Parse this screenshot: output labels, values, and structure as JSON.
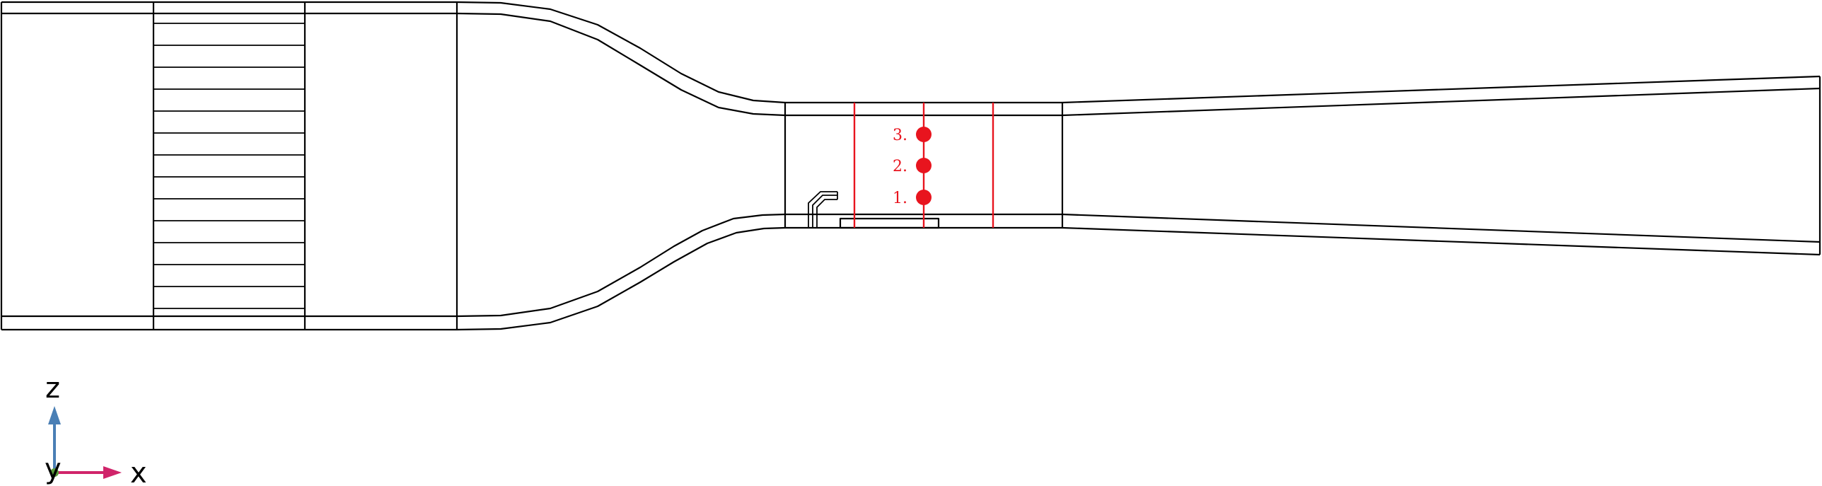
{
  "colors": {
    "outline": "#000000",
    "probe": "#e8141e",
    "axis_z": "#4a7fb5",
    "axis_x": "#d0246a",
    "axis_y": "#5a9a3c"
  },
  "probes": [
    {
      "label": "1."
    },
    {
      "label": "2."
    },
    {
      "label": "3."
    }
  ],
  "axes": {
    "z_label": "z",
    "x_label": "x",
    "y_label": "y"
  }
}
